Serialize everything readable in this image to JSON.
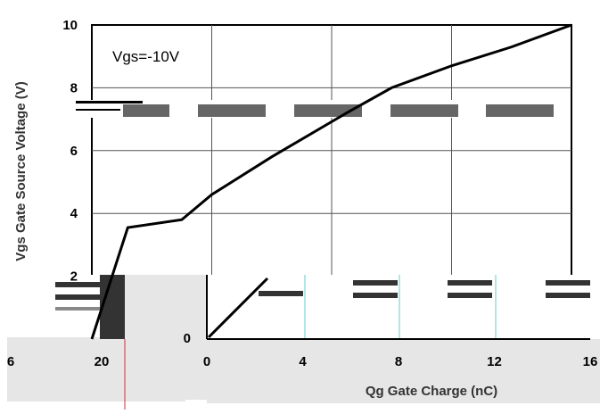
{
  "chart_data": {
    "type": "line",
    "title": "",
    "annotation": "Vgs=-10V",
    "xlabel": "Qg Gate Charge (nC)",
    "ylabel": "Vgs Gate Source Voltage (V)",
    "xlim": [
      0,
      16
    ],
    "ylim": [
      0,
      10
    ],
    "x_ticks": [
      "0",
      "4",
      "8",
      "12",
      "16"
    ],
    "y_ticks": [
      "0",
      "2",
      "4",
      "6",
      "8",
      "10"
    ],
    "grid": true,
    "colors": {
      "line": "#000000",
      "grid": "#555555",
      "artifact_gray": "#e6e6e6",
      "artifact_dark": "#333333",
      "artifact_red": "#cc3333"
    },
    "series": [
      {
        "x": [
          0,
          1.2,
          3.0,
          4.0,
          6.0,
          8.5,
          10.0,
          12.0,
          14.0,
          16.0
        ],
        "y": [
          0,
          3.55,
          3.8,
          4.6,
          5.8,
          7.2,
          8.0,
          8.7,
          9.3,
          10.0
        ]
      }
    ],
    "artifact_x_ticks": [
      "6",
      "20"
    ]
  }
}
